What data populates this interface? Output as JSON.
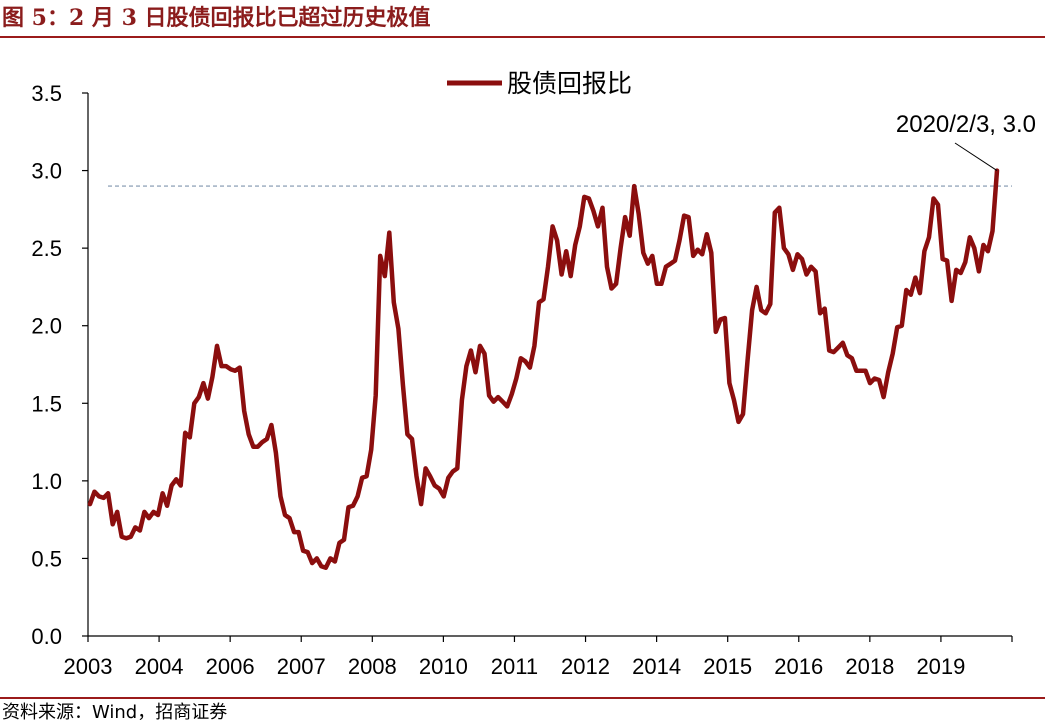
{
  "header": {
    "title": "图 5：2 月 3 日股债回报比已超过历史极值"
  },
  "footer": {
    "source": "资料来源：Wind，招商证券"
  },
  "chart_data": {
    "type": "line",
    "title": "图 5：2 月 3 日股债回报比已超过历史极值",
    "xlabel": "",
    "ylabel": "",
    "ylim": [
      0,
      3.5
    ],
    "yticks": [
      "0.0",
      "0.5",
      "1.0",
      "1.5",
      "2.0",
      "2.5",
      "3.0",
      "3.5"
    ],
    "xticks": [
      "2003",
      "2004",
      "2006",
      "2007",
      "2008",
      "2010",
      "2011",
      "2012",
      "2014",
      "2015",
      "2016",
      "2018",
      "2019"
    ],
    "grid": false,
    "legend_position": "top-center",
    "reference_line": {
      "value": 2.9,
      "style": "dashed"
    },
    "annotation": {
      "text": "2020/2/3, 3.0",
      "x": 1,
      "y": 3.0
    },
    "colors": {
      "series": "#8b0e0e",
      "reference": "#7f95ad",
      "title": "#8b1c1c",
      "rule": "#9b1b1b"
    },
    "series": [
      {
        "name": "股债回报比",
        "values": [
          0.85,
          0.93,
          0.9,
          0.89,
          0.92,
          0.72,
          0.8,
          0.64,
          0.63,
          0.64,
          0.7,
          0.68,
          0.8,
          0.76,
          0.8,
          0.78,
          0.92,
          0.84,
          0.97,
          1.01,
          0.97,
          1.31,
          1.28,
          1.5,
          1.54,
          1.63,
          1.53,
          1.67,
          1.87,
          1.74,
          1.74,
          1.72,
          1.71,
          1.73,
          1.45,
          1.3,
          1.22,
          1.22,
          1.25,
          1.27,
          1.36,
          1.18,
          0.9,
          0.78,
          0.76,
          0.67,
          0.67,
          0.55,
          0.54,
          0.47,
          0.5,
          0.45,
          0.44,
          0.5,
          0.48,
          0.6,
          0.62,
          0.83,
          0.84,
          0.9,
          1.02,
          1.03,
          1.2,
          1.55,
          2.45,
          2.32,
          2.6,
          2.15,
          1.98,
          1.62,
          1.3,
          1.27,
          1.03,
          0.85,
          1.08,
          1.03,
          0.97,
          0.95,
          0.9,
          1.02,
          1.06,
          1.08,
          1.52,
          1.74,
          1.84,
          1.7,
          1.87,
          1.82,
          1.55,
          1.51,
          1.54,
          1.51,
          1.48,
          1.56,
          1.66,
          1.79,
          1.77,
          1.73,
          1.87,
          2.15,
          2.17,
          2.38,
          2.64,
          2.55,
          2.33,
          2.48,
          2.32,
          2.52,
          2.64,
          2.83,
          2.82,
          2.74,
          2.64,
          2.76,
          2.38,
          2.24,
          2.27,
          2.5,
          2.7,
          2.58,
          2.9,
          2.72,
          2.47,
          2.4,
          2.45,
          2.27,
          2.27,
          2.38,
          2.4,
          2.42,
          2.55,
          2.71,
          2.7,
          2.45,
          2.49,
          2.46,
          2.59,
          2.47,
          1.96,
          2.04,
          2.05,
          1.63,
          1.52,
          1.38,
          1.43,
          1.78,
          2.1,
          2.25,
          2.1,
          2.08,
          2.14,
          2.73,
          2.76,
          2.5,
          2.46,
          2.36,
          2.46,
          2.43,
          2.33,
          2.38,
          2.35,
          2.08,
          2.11,
          1.84,
          1.83,
          1.86,
          1.89,
          1.81,
          1.79,
          1.71,
          1.71,
          1.71,
          1.63,
          1.66,
          1.65,
          1.54,
          1.7,
          1.82,
          1.99,
          2.0,
          2.23,
          2.2,
          2.31,
          2.21,
          2.48,
          2.57,
          2.82,
          2.78,
          2.43,
          2.42,
          2.16,
          2.36,
          2.34,
          2.41,
          2.57,
          2.5,
          2.35,
          2.52,
          2.48,
          2.61,
          3.0
        ]
      }
    ]
  }
}
